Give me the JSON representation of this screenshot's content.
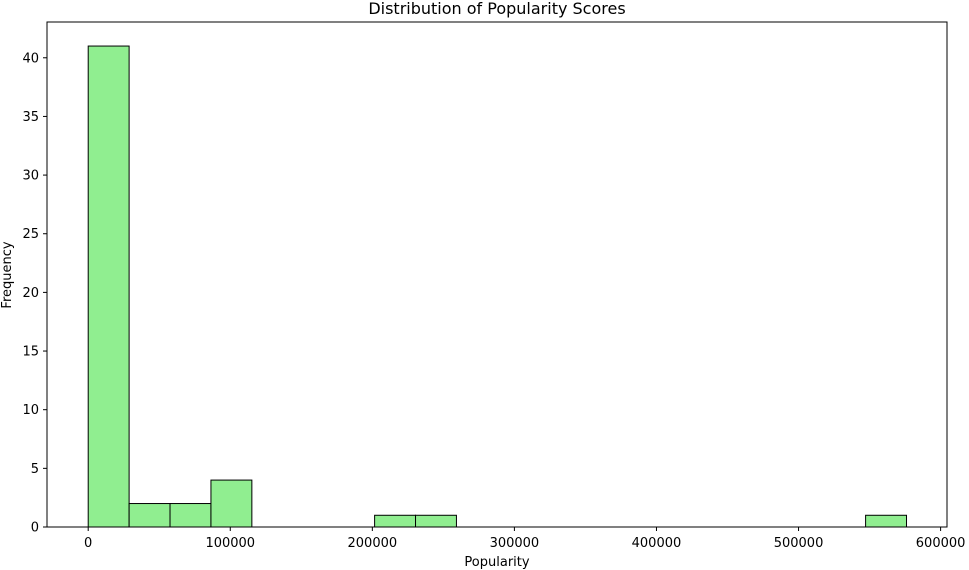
{
  "chart_data": {
    "type": "bar",
    "title": "Distribution of Popularity Scores",
    "xlabel": "Popularity",
    "ylabel": "Frequency",
    "xlim": [
      -29000,
      604500
    ],
    "ylim": [
      0,
      43.05
    ],
    "x_ticks": [
      0,
      100000,
      200000,
      300000,
      400000,
      500000,
      600000
    ],
    "y_ticks": [
      0,
      5,
      10,
      15,
      20,
      25,
      30,
      35,
      40
    ],
    "bin_edges": [
      0,
      28800,
      57600,
      86400,
      115200,
      144000,
      172800,
      201600,
      230400,
      259200,
      288000,
      316800,
      345600,
      374400,
      403200,
      432000,
      460800,
      489600,
      518400,
      547200,
      576000
    ],
    "values": [
      41,
      2,
      2,
      4,
      0,
      0,
      0,
      1,
      1,
      0,
      0,
      0,
      0,
      0,
      0,
      0,
      0,
      0,
      0,
      1
    ],
    "bar_color": "#90ee90",
    "edge_color": "#000000",
    "grid": false
  }
}
